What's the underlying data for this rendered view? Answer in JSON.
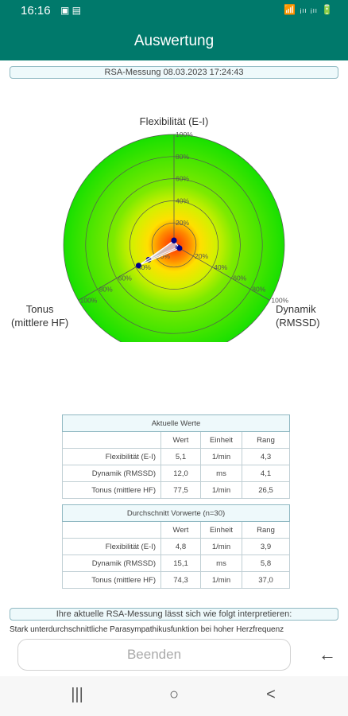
{
  "status": {
    "time": "16:16",
    "notif_icons": "▣ ▤",
    "system_icons": "📶 ᵢₗₗ ᵢₗₗ 🔋"
  },
  "appbar": {
    "title": "Auswertung"
  },
  "measurement_label": "RSA-Messung 08.03.2023 17:24:43",
  "radar": {
    "axes": [
      "Flexibilität (E-I)",
      "Dynamik",
      "(RMSSD)",
      "Tonus",
      "(mittlere HF)"
    ],
    "ring_labels": [
      "20%",
      "40%",
      "60%",
      "80%",
      "100%"
    ],
    "colors": {
      "outer": "#20e000",
      "inner": "#ff3000",
      "point": "#00008b"
    }
  },
  "chart_data": {
    "type": "radar",
    "axes": [
      "Flexibilität (E-I)",
      "Dynamik (RMSSD)",
      "Tonus (mittlere HF)"
    ],
    "scale": "percent",
    "ticks": [
      "20%",
      "40%",
      "60%",
      "80%",
      "100%"
    ],
    "series": [
      {
        "values": [
          4.3,
          4.1,
          26.5
        ]
      },
      {
        "values": [
          3.9,
          5.8,
          37.0
        ]
      }
    ]
  },
  "table_current": {
    "caption": "Aktuelle Werte",
    "headers": [
      "",
      "Wert",
      "Einheit",
      "Rang"
    ],
    "rows": [
      [
        "Flexibilität (E-I)",
        "5,1",
        "1/min",
        "4,3"
      ],
      [
        "Dynamik (RMSSD)",
        "12,0",
        "ms",
        "4,1"
      ],
      [
        "Tonus (mittlere HF)",
        "77,5",
        "1/min",
        "26,5"
      ]
    ]
  },
  "table_avg": {
    "caption": "Durchschnitt Vorwerte (n=30)",
    "headers": [
      "",
      "Wert",
      "Einheit",
      "Rang"
    ],
    "rows": [
      [
        "Flexibilität (E-I)",
        "4,8",
        "1/min",
        "3,9"
      ],
      [
        "Dynamik (RMSSD)",
        "15,1",
        "ms",
        "5,8"
      ],
      [
        "Tonus (mittlere HF)",
        "74,3",
        "1/min",
        "37,0"
      ]
    ]
  },
  "interpretation": {
    "header": "Ihre aktuelle RSA-Messung lässt sich wie folgt interpretieren:",
    "text": "Stark unterdurchschnittliche Parasympathikusfunktion bei hoher Herzfrequenz"
  },
  "buttons": {
    "end_label": "Beenden",
    "back_glyph": "←"
  },
  "navbar": {
    "recents": "|||",
    "home": "○",
    "back": "<"
  }
}
